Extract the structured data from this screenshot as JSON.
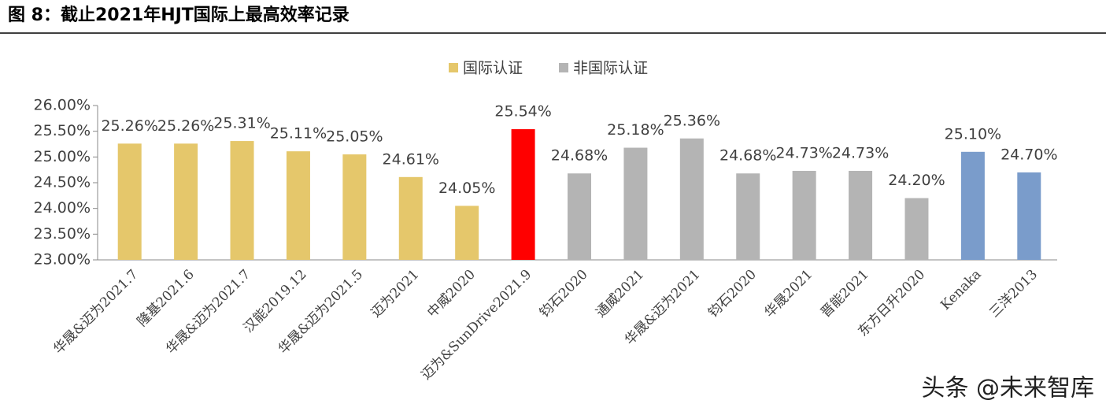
{
  "chart_data": {
    "type": "bar",
    "title": "图 8：截止2021年HJT国际上最高效率记录",
    "legend": [
      {
        "name": "国际认证",
        "color": "#E5C76B"
      },
      {
        "name": "非国际认证",
        "color": "#B4B4B4"
      }
    ],
    "categories": [
      "华晟&迈为2021.7",
      "隆基2021.6",
      "华晟&迈为2021.7",
      "汉能2019.12",
      "华晟&迈为2021.5",
      "迈为2021",
      "中威2020",
      "迈为&SunDrive2021.9",
      "钧石2020",
      "通威2021",
      "华晟&迈为2021",
      "钧石2020",
      "华晟2021",
      "晋能2021",
      "东方日升2020",
      "Kenaka",
      "三洋2013"
    ],
    "values": [
      25.26,
      25.26,
      25.31,
      25.11,
      25.05,
      24.61,
      24.05,
      25.54,
      24.68,
      25.18,
      25.36,
      24.68,
      24.73,
      24.73,
      24.2,
      25.1,
      24.7
    ],
    "value_labels": [
      "25.26%",
      "25.26%",
      "25.31%",
      "25.11%",
      "25.05%",
      "24.61%",
      "24.05%",
      "25.54%",
      "24.68%",
      "25.18%",
      "25.36%",
      "24.68%",
      "24.73%",
      "24.73%",
      "24.20%",
      "25.10%",
      "24.70%"
    ],
    "colors": [
      "#E5C76B",
      "#E5C76B",
      "#E5C76B",
      "#E5C76B",
      "#E5C76B",
      "#E5C76B",
      "#E5C76B",
      "#FF0000",
      "#B4B4B4",
      "#B4B4B4",
      "#B4B4B4",
      "#B4B4B4",
      "#B4B4B4",
      "#B4B4B4",
      "#B4B4B4",
      "#7A9CCB",
      "#7A9CCB"
    ],
    "ylim": [
      23,
      26
    ],
    "yticks": [
      {
        "value": 23,
        "label": "23.00%"
      },
      {
        "value": 23.5,
        "label": "23.50%"
      },
      {
        "value": 24,
        "label": "24.00%"
      },
      {
        "value": 24.5,
        "label": "24.50%"
      },
      {
        "value": 25,
        "label": "25.00%"
      },
      {
        "value": 25.5,
        "label": "25.50%"
      },
      {
        "value": 26,
        "label": "26.00%"
      }
    ],
    "grid": false,
    "watermark": "头条 @未来智库"
  }
}
